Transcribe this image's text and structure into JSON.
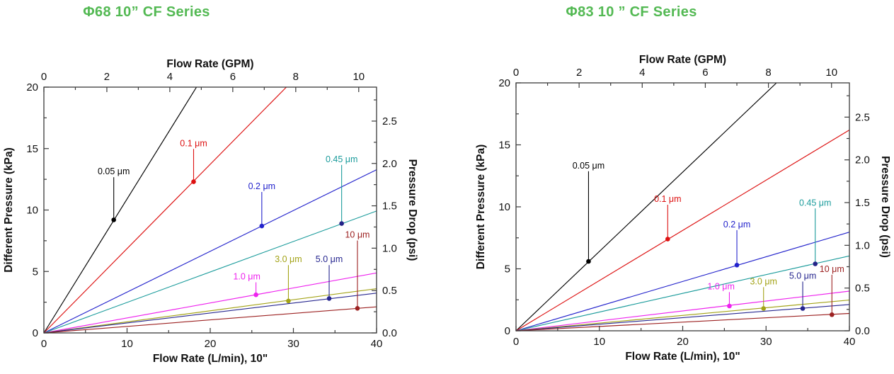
{
  "page": {
    "background": "#ffffff",
    "title_color": "#53b953",
    "axis_color": "#3a3a3a"
  },
  "chart_data": [
    {
      "type": "line",
      "title": "Φ68 10”  CF Series",
      "axes": {
        "top": {
          "label": "Flow Rate (GPM)",
          "ticks": [
            0,
            2,
            4,
            6,
            8,
            10
          ],
          "minor": [
            1,
            3,
            5,
            7,
            9
          ],
          "scale_to_primary": 3.7854
        },
        "bottom": {
          "label": "Flow Rate (L/min), 10\"",
          "ticks": [
            0,
            10,
            20,
            30,
            40
          ],
          "minor": [
            5,
            15,
            25,
            35
          ],
          "max": 40
        },
        "left": {
          "label": "Different Pressure (kPa)",
          "ticks": [
            0,
            5,
            10,
            15,
            20
          ],
          "minor": [
            2.5,
            7.5,
            12.5,
            17.5
          ],
          "max": 20
        },
        "right": {
          "label": "Pressure Drop (psi)",
          "ticks": [
            "0.0",
            "0.5",
            "1.0",
            "1.5",
            "2.0",
            "2.5"
          ],
          "minor": [
            0.25,
            0.75,
            1.25,
            1.75,
            2.25,
            2.75
          ],
          "scale_to_primary": 6.89476
        }
      },
      "series": [
        {
          "name": "0.05 μm",
          "color": "#000000",
          "slope_kpa_per_lmin": 1.09,
          "marker": {
            "x": 8.4,
            "y": 9.2
          },
          "label_y": 12.9
        },
        {
          "name": "0.1 μm",
          "color": "#dd1111",
          "slope_kpa_per_lmin": 0.686,
          "marker": {
            "x": 18.0,
            "y": 12.3
          },
          "label_y": 15.2
        },
        {
          "name": "0.2 μm",
          "color": "#2323cc",
          "slope_kpa_per_lmin": 0.332,
          "marker": {
            "x": 26.2,
            "y": 8.7
          },
          "label_y": 11.7
        },
        {
          "name": "0.45 μm",
          "color": "#1a9b9b",
          "marker_color": "#232388",
          "slope_kpa_per_lmin": 0.248,
          "marker": {
            "x": 35.8,
            "y": 8.9
          },
          "label_y": 13.9
        },
        {
          "name": "1.0 μm",
          "color": "#ee22ee",
          "slope_kpa_per_lmin": 0.122,
          "marker": {
            "x": 25.5,
            "y": 3.1
          },
          "label_y": 4.35,
          "label_dx": -1.1
        },
        {
          "name": "3.0 μm",
          "color": "#a3a317",
          "slope_kpa_per_lmin": 0.09,
          "marker": {
            "x": 29.4,
            "y": 2.6
          },
          "label_y": 5.75
        },
        {
          "name": "5.0 μm",
          "color": "#26268f",
          "slope_kpa_per_lmin": 0.081,
          "marker": {
            "x": 34.3,
            "y": 2.8
          },
          "label_y": 5.75
        },
        {
          "name": "10 μm",
          "color": "#9c2121",
          "slope_kpa_per_lmin": 0.053,
          "marker": {
            "x": 37.7,
            "y": 2.0
          },
          "label_y": 7.75
        }
      ]
    },
    {
      "type": "line",
      "title": "Φ83 10 ”  CF Series",
      "axes": {
        "top": {
          "label": "Flow Rate (GPM)",
          "ticks": [
            0,
            2,
            4,
            6,
            8,
            10
          ],
          "minor": [
            1,
            3,
            5,
            7,
            9
          ],
          "scale_to_primary": 3.7854
        },
        "bottom": {
          "label": "Flow Rate (L/min), 10\"",
          "ticks": [
            0,
            10,
            20,
            30,
            40
          ],
          "minor": [
            5,
            15,
            25,
            35
          ],
          "max": 40
        },
        "left": {
          "label": "Different Pressure (kPa)",
          "ticks": [
            0,
            5,
            10,
            15,
            20
          ],
          "minor": [
            2.5,
            7.5,
            12.5,
            17.5
          ],
          "max": 20
        },
        "right": {
          "label": "Pressure Drop (psi)",
          "ticks": [
            "0.0",
            "0.5",
            "1.0",
            "1.5",
            "2.0",
            "2.5"
          ],
          "minor": [
            0.25,
            0.75,
            1.25,
            1.75,
            2.25,
            2.75
          ],
          "scale_to_primary": 6.89476
        }
      },
      "series": [
        {
          "name": "0.05 μm",
          "color": "#000000",
          "slope_kpa_per_lmin": 0.64,
          "marker": {
            "x": 8.7,
            "y": 5.6
          },
          "label_y": 13.1
        },
        {
          "name": "0.1 μm",
          "color": "#dd1111",
          "slope_kpa_per_lmin": 0.405,
          "marker": {
            "x": 18.2,
            "y": 7.4
          },
          "label_y": 10.4
        },
        {
          "name": "0.2 μm",
          "color": "#2323cc",
          "slope_kpa_per_lmin": 0.199,
          "marker": {
            "x": 26.5,
            "y": 5.3
          },
          "label_y": 8.35
        },
        {
          "name": "0.45 μm",
          "color": "#1a9b9b",
          "marker_color": "#232388",
          "slope_kpa_per_lmin": 0.151,
          "marker": {
            "x": 35.9,
            "y": 5.4
          },
          "label_y": 10.1
        },
        {
          "name": "1.0 μm",
          "color": "#ee22ee",
          "slope_kpa_per_lmin": 0.08,
          "marker": {
            "x": 25.6,
            "y": 2.0
          },
          "label_y": 3.35,
          "label_dx": -1.0
        },
        {
          "name": "3.0 μm",
          "color": "#a3a317",
          "slope_kpa_per_lmin": 0.062,
          "marker": {
            "x": 29.7,
            "y": 1.8
          },
          "label_y": 3.75
        },
        {
          "name": "5.0 μm",
          "color": "#26268f",
          "slope_kpa_per_lmin": 0.053,
          "marker": {
            "x": 34.4,
            "y": 1.8
          },
          "label_y": 4.2
        },
        {
          "name": "10 μm",
          "color": "#9c2121",
          "slope_kpa_per_lmin": 0.035,
          "marker": {
            "x": 37.9,
            "y": 1.3
          },
          "label_y": 4.75
        }
      ]
    }
  ]
}
